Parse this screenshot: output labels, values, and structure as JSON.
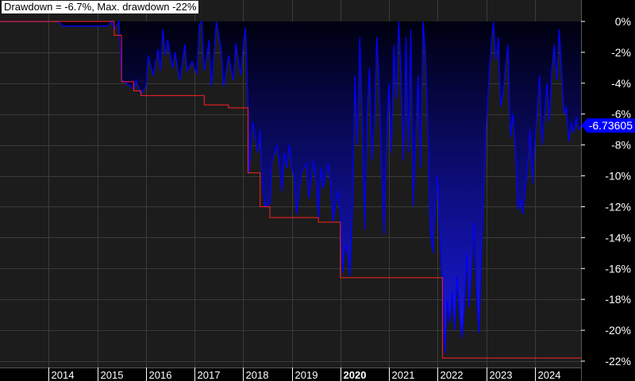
{
  "chart_data": {
    "type": "area",
    "title": "Drawdown = -6.7%, Max. drawdown -22%",
    "last_value_label": "-6.73605",
    "ylim": [
      -23,
      0.6
    ],
    "y_ticks": [
      0,
      -2,
      -4,
      -6,
      -8,
      -10,
      -12,
      -14,
      -16,
      -18,
      -20,
      -22
    ],
    "y_tick_labels": [
      "0%",
      "-2%",
      "-4%",
      "-6%",
      "-8%",
      "-10%",
      "-12%",
      "-14%",
      "-16%",
      "-18%",
      "-20%",
      "-22%"
    ],
    "xlim": [
      2013.0,
      2024.95
    ],
    "x_ticks": [
      2014,
      2015,
      2016,
      2017,
      2018,
      2019,
      2020,
      2021,
      2022,
      2023,
      2024
    ],
    "x_tick_labels": [
      "2014",
      "2015",
      "2016",
      "2017",
      "2018",
      "2019",
      "2020",
      "2021",
      "2022",
      "2023",
      "2024"
    ],
    "x_tick_bold": [
      false,
      false,
      false,
      false,
      false,
      false,
      true,
      false,
      false,
      false,
      false
    ],
    "grid": true,
    "colors": {
      "background": "#1c1c1c",
      "grid": "#3a3a3a",
      "line": "#0000ff",
      "fill_top": "#000010",
      "fill_bottom": "#1a1ae6",
      "max_drawdown": "#ff2020",
      "axis_text": "#ffffff"
    },
    "series": [
      {
        "values": [
          [
            2013.0,
            0
          ],
          [
            2014.2,
            0
          ],
          [
            2014.3,
            -0.3
          ],
          [
            2015.2,
            -0.3
          ],
          [
            2015.3,
            0
          ],
          [
            2015.35,
            -0.5
          ],
          [
            2015.45,
            0
          ],
          [
            2015.5,
            -3.8
          ],
          [
            2015.6,
            -4.0
          ],
          [
            2015.75,
            -4.4
          ],
          [
            2015.8,
            -3.8
          ],
          [
            2015.9,
            -4.7
          ],
          [
            2016.0,
            -4.2
          ],
          [
            2016.05,
            -2.2
          ],
          [
            2016.15,
            -3.5
          ],
          [
            2016.25,
            -1.8
          ],
          [
            2016.3,
            -3.2
          ],
          [
            2016.35,
            -0.5
          ],
          [
            2016.4,
            -2.2
          ],
          [
            2016.45,
            -1.2
          ],
          [
            2016.55,
            -3.0
          ],
          [
            2016.6,
            -2.0
          ],
          [
            2016.7,
            -3.8
          ],
          [
            2016.8,
            -1.5
          ],
          [
            2016.85,
            -3.2
          ],
          [
            2016.95,
            -2.6
          ],
          [
            2017.05,
            -3.4
          ],
          [
            2017.1,
            -0.2
          ],
          [
            2017.15,
            0
          ],
          [
            2017.2,
            -3.2
          ],
          [
            2017.3,
            -1.2
          ],
          [
            2017.35,
            -4.2
          ],
          [
            2017.45,
            0
          ],
          [
            2017.55,
            -1.8
          ],
          [
            2017.6,
            -4.2
          ],
          [
            2017.7,
            -2.2
          ],
          [
            2017.8,
            -3.8
          ],
          [
            2017.85,
            -1.4
          ],
          [
            2017.95,
            -3.5
          ],
          [
            2018.0,
            -1.6
          ],
          [
            2018.05,
            -0.4
          ],
          [
            2018.1,
            -5.0
          ],
          [
            2018.12,
            -9.8
          ],
          [
            2018.2,
            -6.5
          ],
          [
            2018.3,
            -8.5
          ],
          [
            2018.35,
            -7.0
          ],
          [
            2018.4,
            -10.5
          ],
          [
            2018.45,
            -12.0
          ],
          [
            2018.55,
            -11.8
          ],
          [
            2018.6,
            -9.0
          ],
          [
            2018.7,
            -8.0
          ],
          [
            2018.8,
            -11.0
          ],
          [
            2018.85,
            -8.5
          ],
          [
            2018.9,
            -9.5
          ],
          [
            2018.95,
            -8.0
          ],
          [
            2019.0,
            -9.5
          ],
          [
            2019.05,
            -10.0
          ],
          [
            2019.1,
            -12.5
          ],
          [
            2019.2,
            -9.8
          ],
          [
            2019.3,
            -9.2
          ],
          [
            2019.35,
            -11.5
          ],
          [
            2019.45,
            -9.0
          ],
          [
            2019.5,
            -10.5
          ],
          [
            2019.55,
            -12.8
          ],
          [
            2019.6,
            -9.5
          ],
          [
            2019.65,
            -10.8
          ],
          [
            2019.75,
            -9.2
          ],
          [
            2019.8,
            -10.5
          ],
          [
            2019.85,
            -13.0
          ],
          [
            2019.95,
            -11.0
          ],
          [
            2020.0,
            -12.5
          ],
          [
            2020.05,
            -16.3
          ],
          [
            2020.1,
            -14.5
          ],
          [
            2020.15,
            -15.0
          ],
          [
            2020.2,
            -16.5
          ],
          [
            2020.25,
            -12.0
          ],
          [
            2020.3,
            -3.5
          ],
          [
            2020.35,
            -8.0
          ],
          [
            2020.4,
            -1.0
          ],
          [
            2020.45,
            -6.0
          ],
          [
            2020.5,
            -13.5
          ],
          [
            2020.55,
            -6.0
          ],
          [
            2020.6,
            -3.0
          ],
          [
            2020.65,
            -9.0
          ],
          [
            2020.7,
            -6.5
          ],
          [
            2020.75,
            -1.0
          ],
          [
            2020.8,
            -4.0
          ],
          [
            2020.85,
            -9.5
          ],
          [
            2020.9,
            -13.8
          ],
          [
            2020.95,
            -7.5
          ],
          [
            2021.0,
            -4.0
          ],
          [
            2021.05,
            -8.5
          ],
          [
            2021.1,
            -1.5
          ],
          [
            2021.15,
            -5.0
          ],
          [
            2021.2,
            0
          ],
          [
            2021.25,
            -3.2
          ],
          [
            2021.3,
            -9.0
          ],
          [
            2021.35,
            -1.0
          ],
          [
            2021.4,
            -8.5
          ],
          [
            2021.45,
            -0.5
          ],
          [
            2021.5,
            -12.0
          ],
          [
            2021.55,
            -7.5
          ],
          [
            2021.6,
            -3.5
          ],
          [
            2021.65,
            -9.5
          ],
          [
            2021.7,
            0
          ],
          [
            2021.75,
            -2.0
          ],
          [
            2021.8,
            -6.5
          ],
          [
            2021.85,
            -13.5
          ],
          [
            2021.9,
            -15.0
          ],
          [
            2021.95,
            -12.5
          ],
          [
            2022.0,
            -10.0
          ],
          [
            2022.05,
            -14.0
          ],
          [
            2022.1,
            -17.0
          ],
          [
            2022.15,
            -21.5
          ],
          [
            2022.2,
            -18.0
          ],
          [
            2022.25,
            -19.5
          ],
          [
            2022.3,
            -17.5
          ],
          [
            2022.35,
            -20.0
          ],
          [
            2022.4,
            -16.5
          ],
          [
            2022.45,
            -19.0
          ],
          [
            2022.5,
            -20.5
          ],
          [
            2022.55,
            -18.5
          ],
          [
            2022.6,
            -15.0
          ],
          [
            2022.65,
            -18.5
          ],
          [
            2022.7,
            -16.0
          ],
          [
            2022.75,
            -13.0
          ],
          [
            2022.8,
            -17.5
          ],
          [
            2022.85,
            -20.2
          ],
          [
            2022.9,
            -15.5
          ],
          [
            2022.95,
            -10.5
          ],
          [
            2023.0,
            -6.5
          ],
          [
            2023.05,
            -4.0
          ],
          [
            2023.1,
            -1.5
          ],
          [
            2023.15,
            0
          ],
          [
            2023.2,
            -2.5
          ],
          [
            2023.25,
            -1.0
          ],
          [
            2023.3,
            -5.5
          ],
          [
            2023.35,
            -4.5
          ],
          [
            2023.4,
            -2.8
          ],
          [
            2023.45,
            -1.5
          ],
          [
            2023.5,
            -7.5
          ],
          [
            2023.55,
            -6.0
          ],
          [
            2023.6,
            -8.0
          ],
          [
            2023.65,
            -12.2
          ],
          [
            2023.7,
            -11.5
          ],
          [
            2023.75,
            -12.5
          ],
          [
            2023.8,
            -11.0
          ],
          [
            2023.85,
            -9.5
          ],
          [
            2023.9,
            -7.0
          ],
          [
            2023.95,
            -10.5
          ],
          [
            2024.0,
            -8.0
          ],
          [
            2024.05,
            -5.5
          ],
          [
            2024.1,
            -3.5
          ],
          [
            2024.15,
            -8.0
          ],
          [
            2024.2,
            -6.0
          ],
          [
            2024.25,
            -4.0
          ],
          [
            2024.3,
            -6.5
          ],
          [
            2024.35,
            -3.0
          ],
          [
            2024.4,
            -1.5
          ],
          [
            2024.45,
            -3.8
          ],
          [
            2024.5,
            -0.5
          ],
          [
            2024.55,
            -3.0
          ],
          [
            2024.6,
            -6.0
          ],
          [
            2024.65,
            -5.5
          ],
          [
            2024.7,
            -7.8
          ],
          [
            2024.75,
            -6.5
          ],
          [
            2024.8,
            -7.2
          ],
          [
            2024.85,
            -6.2
          ],
          [
            2024.9,
            -7.0
          ],
          [
            2024.95,
            -6.74
          ]
        ]
      },
      {
        "values": [
          [
            2013.0,
            0
          ],
          [
            2015.35,
            0
          ],
          [
            2015.35,
            -0.9
          ],
          [
            2015.5,
            -0.9
          ],
          [
            2015.5,
            -3.9
          ],
          [
            2015.75,
            -3.9
          ],
          [
            2015.75,
            -4.5
          ],
          [
            2015.9,
            -4.5
          ],
          [
            2015.9,
            -4.8
          ],
          [
            2017.2,
            -4.8
          ],
          [
            2017.2,
            -5.4
          ],
          [
            2017.7,
            -5.4
          ],
          [
            2017.7,
            -5.6
          ],
          [
            2018.1,
            -5.6
          ],
          [
            2018.1,
            -9.8
          ],
          [
            2018.35,
            -9.8
          ],
          [
            2018.35,
            -12.0
          ],
          [
            2018.55,
            -12.0
          ],
          [
            2018.55,
            -12.7
          ],
          [
            2019.55,
            -12.7
          ],
          [
            2019.55,
            -13.0
          ],
          [
            2020.0,
            -13.0
          ],
          [
            2020.0,
            -16.6
          ],
          [
            2022.1,
            -16.6
          ],
          [
            2022.1,
            -21.8
          ],
          [
            2024.95,
            -21.8
          ]
        ]
      }
    ]
  }
}
